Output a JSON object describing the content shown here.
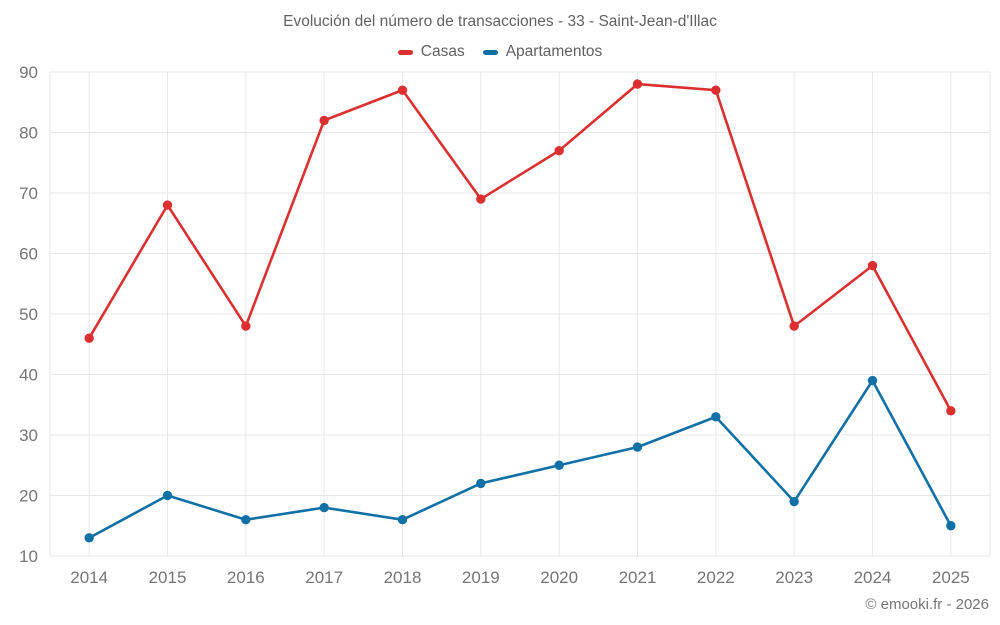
{
  "title": "Evolución del número de transacciones - 33 - Saint-Jean-d'Illac",
  "footer": "© emooki.fr - 2026",
  "chart_data": {
    "type": "line",
    "title": "Evolución del número de transacciones - 33 - Saint-Jean-d'Illac",
    "categories": [
      "2014",
      "2015",
      "2016",
      "2017",
      "2018",
      "2019",
      "2020",
      "2021",
      "2022",
      "2023",
      "2024",
      "2025"
    ],
    "series": [
      {
        "name": "Casas",
        "color": "#dc3030",
        "values": [
          46,
          68,
          48,
          82,
          87,
          69,
          77,
          88,
          87,
          48,
          58,
          34
        ]
      },
      {
        "name": "Apartamentos",
        "color": "#1170a6",
        "values": [
          13,
          20,
          16,
          18,
          16,
          22,
          25,
          28,
          33,
          19,
          39,
          15
        ]
      }
    ],
    "xlabel": "",
    "ylabel": "",
    "ylim": [
      10,
      90
    ],
    "ytick_step": 10,
    "grid": true,
    "legend_position": "top",
    "marker": "circle",
    "colors": {
      "grid": "#e7e7e7",
      "tick_text": "#757575",
      "title_text": "#616161"
    }
  }
}
